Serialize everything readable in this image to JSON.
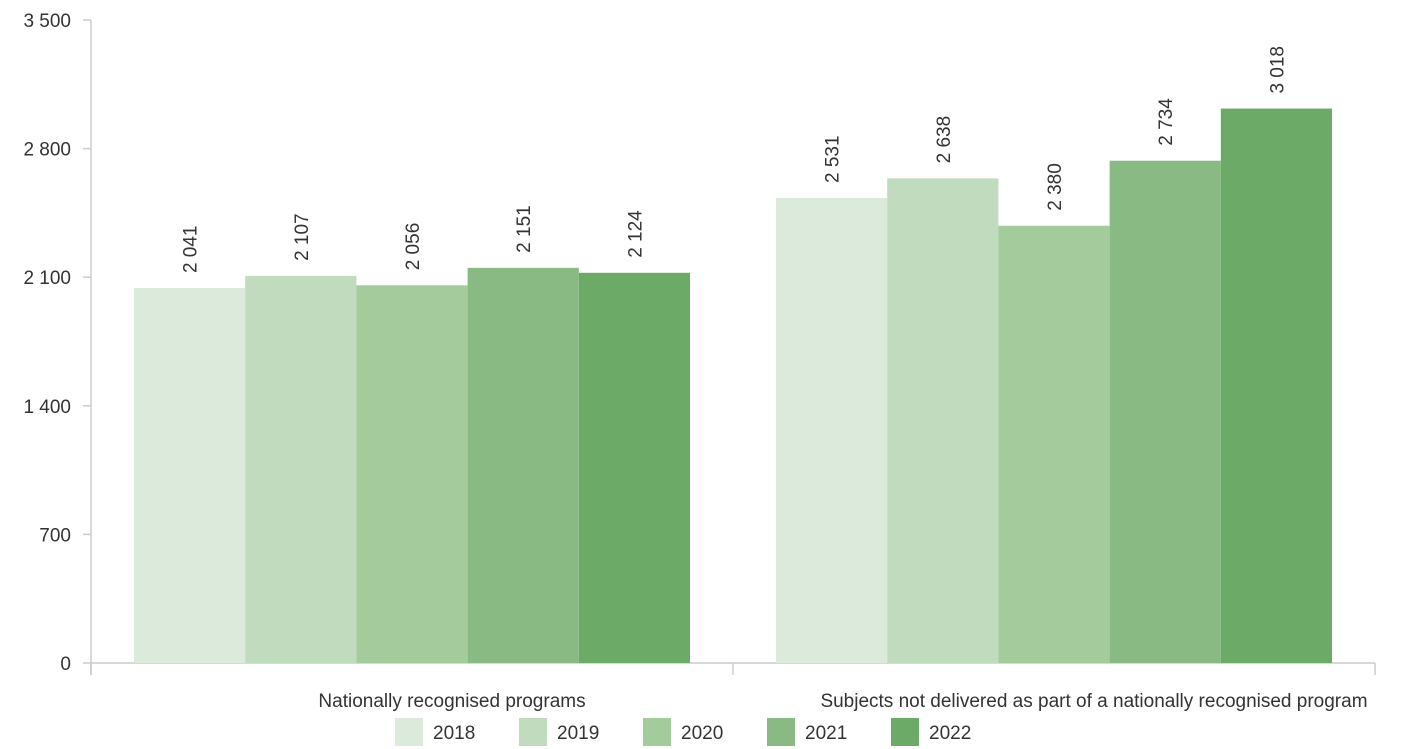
{
  "chart_data": {
    "type": "bar",
    "title": "",
    "xlabel": "",
    "ylabel": "",
    "categories": [
      "Nationally recognised programs",
      "Subjects not delivered as part of a nationally recognised program"
    ],
    "series": [
      {
        "name": "2018",
        "values": [
          2041,
          2531
        ],
        "labels": [
          "2 041",
          "2 531"
        ],
        "color": "#dbeadb"
      },
      {
        "name": "2019",
        "values": [
          2107,
          2638
        ],
        "labels": [
          "2 107",
          "2 638"
        ],
        "color": "#c0dbbd"
      },
      {
        "name": "2020",
        "values": [
          2056,
          2380
        ],
        "labels": [
          "2 056",
          "2 380"
        ],
        "color": "#a4cb9c"
      },
      {
        "name": "2021",
        "values": [
          2151,
          2734
        ],
        "labels": [
          "2 151",
          "2 734"
        ],
        "color": "#8aba84"
      },
      {
        "name": "2022",
        "values": [
          2124,
          3018
        ],
        "labels": [
          "2 124",
          "3 018"
        ],
        "color": "#6caa68"
      }
    ],
    "ylim": [
      0,
      3500
    ],
    "yticks": [
      0,
      700,
      1400,
      2100,
      2800,
      3500
    ],
    "ytick_labels": [
      "0",
      "700",
      "1 400",
      "2 100",
      "2 800",
      "3 500"
    ],
    "legend_position": "bottom",
    "grid": false,
    "axis_color": "#cccccc",
    "text_color": "#333333"
  }
}
